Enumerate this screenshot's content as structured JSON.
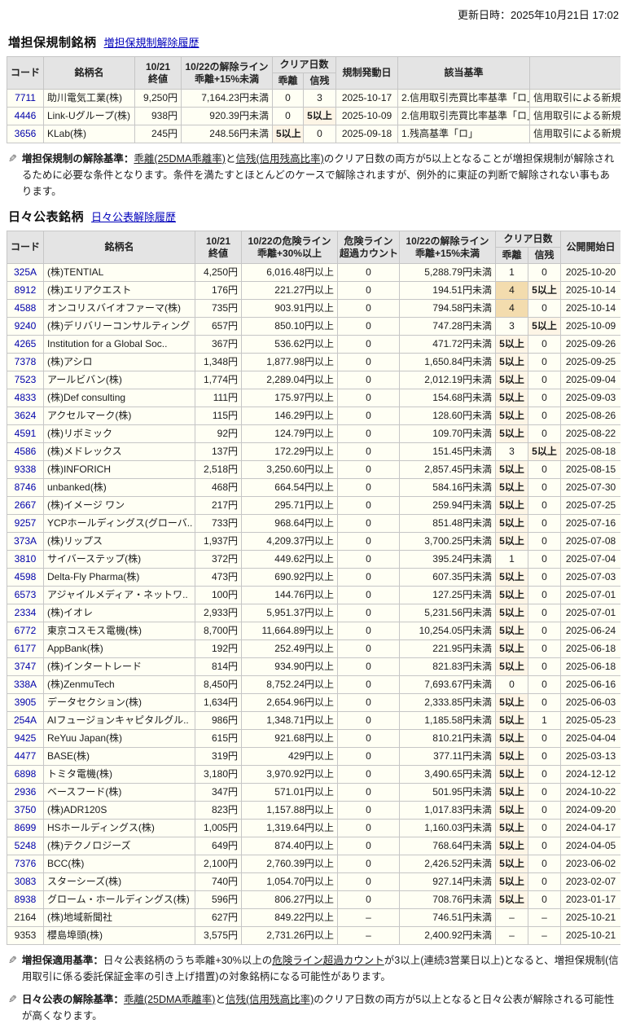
{
  "page": {
    "updated": "更新日時：2025年10月21日 17:02"
  },
  "colors": {
    "link": "#0000aa",
    "highlight_tan": "#f3dcae",
    "highlight_cream": "#fdf5e6",
    "header_bg": "#e4e4e4",
    "row_bg": "#fffff4"
  },
  "margin_section": {
    "title": "増担保規制銘柄",
    "history_link": "増担保規制解除履歴"
  },
  "daily_section": {
    "title": "日々公表銘柄",
    "history_link": "日々公表解除履歴"
  },
  "margin_table": {
    "headers": {
      "code": "コード",
      "name": "銘柄名",
      "close_l1": "10/21",
      "close_l2": "終値",
      "release_l1": "10/22の解除ライン",
      "release_l2": "乖離+15%未満",
      "clear_days": "クリア日数",
      "kairi": "乖離",
      "shinzan": "信残",
      "trigger_date": "規制発動日",
      "basis": "該当基準",
      "extra": ""
    },
    "rows": [
      {
        "code": "7711",
        "link": true,
        "name": "助川電気工業(株)",
        "close": "9,250円",
        "release": "7,164.23円未満",
        "kairi": "0",
        "shinzan": "3",
        "date": "2025-10-17",
        "basis": "2.信用取引売買比率基準「ロ」",
        "extra": "信用取引による新規の売"
      },
      {
        "code": "4446",
        "link": true,
        "name": "Link-Uグループ(株)",
        "close": "938円",
        "release": "920.39円未満",
        "kairi": "0",
        "shinzan": "5以上",
        "date": "2025-10-09",
        "basis": "2.信用取引売買比率基準「ロ」",
        "extra": "信用取引による新規の売"
      },
      {
        "code": "3656",
        "link": true,
        "name": "KLab(株)",
        "close": "245円",
        "release": "248.56円未満",
        "kairi": "5以上",
        "shinzan": "0",
        "date": "2025-09-18",
        "basis": "1.残高基準「ロ」",
        "extra": "信用取引による新規の売"
      }
    ]
  },
  "daily_table": {
    "headers": {
      "code": "コード",
      "name": "銘柄名",
      "close_l1": "10/21",
      "close_l2": "終値",
      "danger_l1": "10/22の危険ライン",
      "danger_l2": "乖離+30%以上",
      "count_l1": "危険ライン",
      "count_l2": "超過カウント",
      "release_l1": "10/22の解除ライン",
      "release_l2": "乖離+15%未満",
      "clear_days": "クリア日数",
      "kairi": "乖離",
      "shinzan": "信残",
      "open_date": "公開開始日"
    },
    "rows": [
      {
        "code": "325A",
        "link": true,
        "name": "(株)TENTIAL",
        "close": "4,250円",
        "danger": "6,016.48円以上",
        "count": "0",
        "release": "5,288.79円未満",
        "kairi": "1",
        "shinzan": "0",
        "date": "2025-10-20"
      },
      {
        "code": "8912",
        "link": true,
        "name": "(株)エリアクエスト",
        "close": "176円",
        "danger": "221.27円以上",
        "count": "0",
        "release": "194.51円未満",
        "kairi": "4",
        "shinzan": "5以上",
        "date": "2025-10-14"
      },
      {
        "code": "4588",
        "link": true,
        "name": "オンコリスバイオファーマ(株)",
        "close": "735円",
        "danger": "903.91円以上",
        "count": "0",
        "release": "794.58円未満",
        "kairi": "4",
        "shinzan": "0",
        "date": "2025-10-14"
      },
      {
        "code": "9240",
        "link": true,
        "name": "(株)デリバリーコンサルティング",
        "close": "657円",
        "danger": "850.10円以上",
        "count": "0",
        "release": "747.28円未満",
        "kairi": "3",
        "shinzan": "5以上",
        "date": "2025-10-09"
      },
      {
        "code": "4265",
        "link": true,
        "name": "Institution for a Global Soc..",
        "close": "367円",
        "danger": "536.62円以上",
        "count": "0",
        "release": "471.72円未満",
        "kairi": "5以上",
        "shinzan": "0",
        "date": "2025-09-26"
      },
      {
        "code": "7378",
        "link": true,
        "name": "(株)アシロ",
        "close": "1,348円",
        "danger": "1,877.98円以上",
        "count": "0",
        "release": "1,650.84円未満",
        "kairi": "5以上",
        "shinzan": "0",
        "date": "2025-09-25"
      },
      {
        "code": "7523",
        "link": true,
        "name": "アールビバン(株)",
        "close": "1,774円",
        "danger": "2,289.04円以上",
        "count": "0",
        "release": "2,012.19円未満",
        "kairi": "5以上",
        "shinzan": "0",
        "date": "2025-09-04"
      },
      {
        "code": "4833",
        "link": true,
        "name": "(株)Def consulting",
        "close": "111円",
        "danger": "175.97円以上",
        "count": "0",
        "release": "154.68円未満",
        "kairi": "5以上",
        "shinzan": "0",
        "date": "2025-09-03"
      },
      {
        "code": "3624",
        "link": true,
        "name": "アクセルマーク(株)",
        "close": "115円",
        "danger": "146.29円以上",
        "count": "0",
        "release": "128.60円未満",
        "kairi": "5以上",
        "shinzan": "0",
        "date": "2025-08-26"
      },
      {
        "code": "4591",
        "link": true,
        "name": "(株)リボミック",
        "close": "92円",
        "danger": "124.79円以上",
        "count": "0",
        "release": "109.70円未満",
        "kairi": "5以上",
        "shinzan": "0",
        "date": "2025-08-22"
      },
      {
        "code": "4586",
        "link": true,
        "name": "(株)メドレックス",
        "close": "137円",
        "danger": "172.29円以上",
        "count": "0",
        "release": "151.45円未満",
        "kairi": "3",
        "shinzan": "5以上",
        "date": "2025-08-18"
      },
      {
        "code": "9338",
        "link": true,
        "name": "(株)INFORICH",
        "close": "2,518円",
        "danger": "3,250.60円以上",
        "count": "0",
        "release": "2,857.45円未満",
        "kairi": "5以上",
        "shinzan": "0",
        "date": "2025-08-15"
      },
      {
        "code": "8746",
        "link": true,
        "name": "unbanked(株)",
        "close": "468円",
        "danger": "664.54円以上",
        "count": "0",
        "release": "584.16円未満",
        "kairi": "5以上",
        "shinzan": "0",
        "date": "2025-07-30"
      },
      {
        "code": "2667",
        "link": true,
        "name": "(株)イメージ ワン",
        "close": "217円",
        "danger": "295.71円以上",
        "count": "0",
        "release": "259.94円未満",
        "kairi": "5以上",
        "shinzan": "0",
        "date": "2025-07-25"
      },
      {
        "code": "9257",
        "link": true,
        "name": "YCPホールディングス(グローバ..",
        "close": "733円",
        "danger": "968.64円以上",
        "count": "0",
        "release": "851.48円未満",
        "kairi": "5以上",
        "shinzan": "0",
        "date": "2025-07-16"
      },
      {
        "code": "373A",
        "link": true,
        "name": "(株)リップス",
        "close": "1,937円",
        "danger": "4,209.37円以上",
        "count": "0",
        "release": "3,700.25円未満",
        "kairi": "5以上",
        "shinzan": "0",
        "date": "2025-07-08"
      },
      {
        "code": "3810",
        "link": true,
        "name": "サイバーステップ(株)",
        "close": "372円",
        "danger": "449.62円以上",
        "count": "0",
        "release": "395.24円未満",
        "kairi": "1",
        "shinzan": "0",
        "date": "2025-07-04"
      },
      {
        "code": "4598",
        "link": true,
        "name": "Delta-Fly Pharma(株)",
        "close": "473円",
        "danger": "690.92円以上",
        "count": "0",
        "release": "607.35円未満",
        "kairi": "5以上",
        "shinzan": "0",
        "date": "2025-07-03"
      },
      {
        "code": "6573",
        "link": true,
        "name": "アジャイルメディア・ネットワ..",
        "close": "100円",
        "danger": "144.76円以上",
        "count": "0",
        "release": "127.25円未満",
        "kairi": "5以上",
        "shinzan": "0",
        "date": "2025-07-01"
      },
      {
        "code": "2334",
        "link": true,
        "name": "(株)イオレ",
        "close": "2,933円",
        "danger": "5,951.37円以上",
        "count": "0",
        "release": "5,231.56円未満",
        "kairi": "5以上",
        "shinzan": "0",
        "date": "2025-07-01"
      },
      {
        "code": "6772",
        "link": true,
        "name": "東京コスモス電機(株)",
        "close": "8,700円",
        "danger": "11,664.89円以上",
        "count": "0",
        "release": "10,254.05円未満",
        "kairi": "5以上",
        "shinzan": "0",
        "date": "2025-06-24"
      },
      {
        "code": "6177",
        "link": true,
        "name": "AppBank(株)",
        "close": "192円",
        "danger": "252.49円以上",
        "count": "0",
        "release": "221.95円未満",
        "kairi": "5以上",
        "shinzan": "0",
        "date": "2025-06-18"
      },
      {
        "code": "3747",
        "link": true,
        "name": "(株)インタートレード",
        "close": "814円",
        "danger": "934.90円以上",
        "count": "0",
        "release": "821.83円未満",
        "kairi": "5以上",
        "shinzan": "0",
        "date": "2025-06-18"
      },
      {
        "code": "338A",
        "link": true,
        "name": "(株)ZenmuTech",
        "close": "8,450円",
        "danger": "8,752.24円以上",
        "count": "0",
        "release": "7,693.67円未満",
        "kairi": "0",
        "shinzan": "0",
        "date": "2025-06-16"
      },
      {
        "code": "3905",
        "link": true,
        "name": "データセクション(株)",
        "close": "1,634円",
        "danger": "2,654.96円以上",
        "count": "0",
        "release": "2,333.85円未満",
        "kairi": "5以上",
        "shinzan": "0",
        "date": "2025-06-03"
      },
      {
        "code": "254A",
        "link": true,
        "name": "AIフュージョンキャピタルグル..",
        "close": "986円",
        "danger": "1,348.71円以上",
        "count": "0",
        "release": "1,185.58円未満",
        "kairi": "5以上",
        "shinzan": "1",
        "date": "2025-05-23"
      },
      {
        "code": "9425",
        "link": true,
        "name": "ReYuu Japan(株)",
        "close": "615円",
        "danger": "921.68円以上",
        "count": "0",
        "release": "810.21円未満",
        "kairi": "5以上",
        "shinzan": "0",
        "date": "2025-04-04"
      },
      {
        "code": "4477",
        "link": true,
        "name": "BASE(株)",
        "close": "319円",
        "danger": "429円以上",
        "count": "0",
        "release": "377.11円未満",
        "kairi": "5以上",
        "shinzan": "0",
        "date": "2025-03-13"
      },
      {
        "code": "6898",
        "link": true,
        "name": "トミタ電機(株)",
        "close": "3,180円",
        "danger": "3,970.92円以上",
        "count": "0",
        "release": "3,490.65円未満",
        "kairi": "5以上",
        "shinzan": "0",
        "date": "2024-12-12"
      },
      {
        "code": "2936",
        "link": true,
        "name": "ベースフード(株)",
        "close": "347円",
        "danger": "571.01円以上",
        "count": "0",
        "release": "501.95円未満",
        "kairi": "5以上",
        "shinzan": "0",
        "date": "2024-10-22"
      },
      {
        "code": "3750",
        "link": true,
        "name": "(株)ADR120S",
        "close": "823円",
        "danger": "1,157.88円以上",
        "count": "0",
        "release": "1,017.83円未満",
        "kairi": "5以上",
        "shinzan": "0",
        "date": "2024-09-20"
      },
      {
        "code": "8699",
        "link": true,
        "name": "HSホールディングス(株)",
        "close": "1,005円",
        "danger": "1,319.64円以上",
        "count": "0",
        "release": "1,160.03円未満",
        "kairi": "5以上",
        "shinzan": "0",
        "date": "2024-04-17"
      },
      {
        "code": "5248",
        "link": true,
        "name": "(株)テクノロジーズ",
        "close": "649円",
        "danger": "874.40円以上",
        "count": "0",
        "release": "768.64円未満",
        "kairi": "5以上",
        "shinzan": "0",
        "date": "2024-04-05"
      },
      {
        "code": "7376",
        "link": true,
        "name": "BCC(株)",
        "close": "2,100円",
        "danger": "2,760.39円以上",
        "count": "0",
        "release": "2,426.52円未満",
        "kairi": "5以上",
        "shinzan": "0",
        "date": "2023-06-02"
      },
      {
        "code": "3083",
        "link": true,
        "name": "スターシーズ(株)",
        "close": "740円",
        "danger": "1,054.70円以上",
        "count": "0",
        "release": "927.14円未満",
        "kairi": "5以上",
        "shinzan": "0",
        "date": "2023-02-07"
      },
      {
        "code": "8938",
        "link": true,
        "name": "グローム・ホールディングス(株)",
        "close": "596円",
        "danger": "806.27円以上",
        "count": "0",
        "release": "708.76円未満",
        "kairi": "5以上",
        "shinzan": "0",
        "date": "2023-01-17"
      },
      {
        "code": "2164",
        "link": false,
        "name": "(株)地域新聞社",
        "close": "627円",
        "danger": "849.22円以上",
        "count": "–",
        "release": "746.51円未満",
        "kairi": "–",
        "shinzan": "–",
        "date": "2025-10-21"
      },
      {
        "code": "9353",
        "link": false,
        "name": "櫻島埠頭(株)",
        "close": "3,575円",
        "danger": "2,731.26円以上",
        "count": "–",
        "release": "2,400.92円未満",
        "kairi": "–",
        "shinzan": "–",
        "date": "2025-10-21"
      }
    ]
  },
  "notes": {
    "margin_release": {
      "label": "増担保規制の解除基準：",
      "segments": [
        {
          "text": "乖離(25DMA乖離率)",
          "u": true
        },
        {
          "text": "と",
          "u": false
        },
        {
          "text": "信残(信用残高比率)",
          "u": true
        },
        {
          "text": "のクリア日数の両方が5以上となることが増担保規制が解除されるために必要な条件となります。条件を満たすとほとんどのケースで解除されますが、例外的に東証の判断で解除されない事もあります。",
          "u": false
        }
      ]
    },
    "margin_apply": {
      "label": "増担保適用基準：",
      "segments": [
        {
          "text": "日々公表銘柄のうち乖離+30%以上の",
          "u": false
        },
        {
          "text": "危険ライン超過カウント",
          "u": true
        },
        {
          "text": "が3以上(連続3営業日以上)となると、増担保規制(信用取引に係る委託保証金率の引き上げ措置)の対象銘柄になる可能性があります。",
          "u": false
        }
      ]
    },
    "daily_release": {
      "label": "日々公表の解除基準：",
      "segments": [
        {
          "text": "乖離(25DMA乖離率)",
          "u": true
        },
        {
          "text": "と",
          "u": false
        },
        {
          "text": "信残(信用残高比率)",
          "u": true
        },
        {
          "text": "のクリア日数の両方が5以上となると日々公表が解除される可能性が高くなります。",
          "u": false
        }
      ]
    }
  },
  "icons": {
    "note_icon": "✎"
  }
}
